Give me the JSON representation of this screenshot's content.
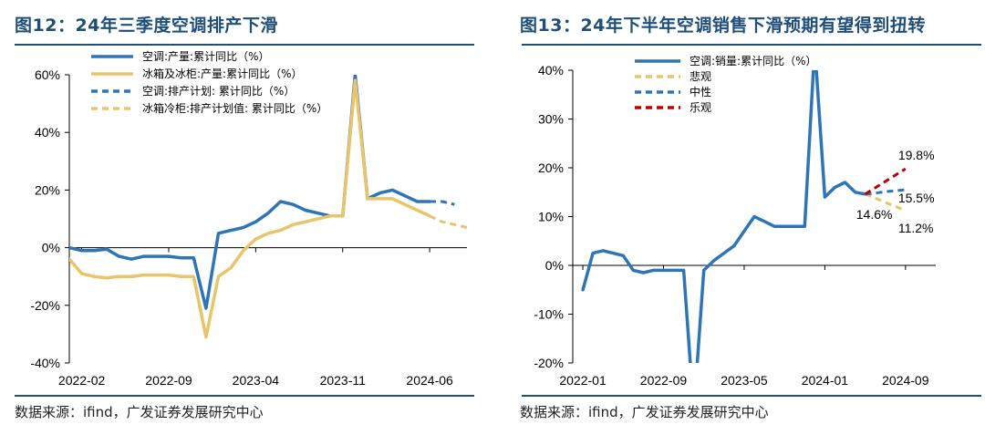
{
  "panels": [
    {
      "title": "图12：24年三季度空调排产下滑",
      "source": "数据来源：ifind，广发证券发展研究中心"
    },
    {
      "title": "图13：24年下半年空调销售下滑预期有望得到扭转",
      "source": "数据来源：ifind，广发证券发展研究中心"
    }
  ],
  "colors": {
    "title": "#1f4e79",
    "blue": "#2e75b6",
    "gold": "#e8c56a",
    "red": "#c00000"
  },
  "chart_data": [
    {
      "type": "line",
      "ylim": [
        -40,
        60
      ],
      "yticks": [
        -40,
        -20,
        0,
        20,
        40,
        60
      ],
      "ytick_labels": [
        "-40%",
        "-20%",
        "0%",
        "20%",
        "40%",
        "60%"
      ],
      "xlim": [
        "2022-01",
        "2024-09"
      ],
      "xticks": [
        "2022-02",
        "2022-09",
        "2023-04",
        "2023-11",
        "2024-06"
      ],
      "legend_position": "top-left",
      "series": [
        {
          "name": "空调:产量:累计同比（%）",
          "style": "solid",
          "color": "#2e75b6",
          "points": [
            [
              "2022-01",
              0
            ],
            [
              "2022-02",
              -1
            ],
            [
              "2022-03",
              -1
            ],
            [
              "2022-04",
              -0.5
            ],
            [
              "2022-05",
              -3
            ],
            [
              "2022-06",
              -4
            ],
            [
              "2022-07",
              -3
            ],
            [
              "2022-08",
              -3
            ],
            [
              "2022-09",
              -3
            ],
            [
              "2022-10",
              -3.5
            ],
            [
              "2022-11",
              -3.5
            ],
            [
              "2022-12",
              -21
            ],
            [
              "2023-01",
              5
            ],
            [
              "2023-02",
              6
            ],
            [
              "2023-03",
              7
            ],
            [
              "2023-04",
              9
            ],
            [
              "2023-05",
              12
            ],
            [
              "2023-06",
              16
            ],
            [
              "2023-07",
              15
            ],
            [
              "2023-08",
              13
            ],
            [
              "2023-09",
              12
            ],
            [
              "2023-10",
              11
            ],
            [
              "2023-11",
              11
            ],
            [
              "2023-12",
              60
            ],
            [
              "2024-01",
              17
            ],
            [
              "2024-02",
              19
            ],
            [
              "2024-03",
              20
            ],
            [
              "2024-04",
              18
            ],
            [
              "2024-05",
              16
            ],
            [
              "2024-06",
              16
            ]
          ]
        },
        {
          "name": "冰箱及冰柜:产量:累计同比（%）",
          "style": "solid",
          "color": "#e8c56a",
          "points": [
            [
              "2022-01",
              -4
            ],
            [
              "2022-02",
              -9
            ],
            [
              "2022-03",
              -10
            ],
            [
              "2022-04",
              -10.5
            ],
            [
              "2022-05",
              -10
            ],
            [
              "2022-06",
              -10
            ],
            [
              "2022-07",
              -9.5
            ],
            [
              "2022-08",
              -9.5
            ],
            [
              "2022-09",
              -9.5
            ],
            [
              "2022-10",
              -10
            ],
            [
              "2022-11",
              -10
            ],
            [
              "2022-12",
              -31
            ],
            [
              "2023-01",
              -10
            ],
            [
              "2023-02",
              -7
            ],
            [
              "2023-03",
              -1
            ],
            [
              "2023-04",
              3
            ],
            [
              "2023-05",
              5
            ],
            [
              "2023-06",
              6
            ],
            [
              "2023-07",
              8
            ],
            [
              "2023-08",
              9
            ],
            [
              "2023-09",
              10
            ],
            [
              "2023-10",
              11
            ],
            [
              "2023-11",
              11
            ],
            [
              "2023-12",
              58
            ],
            [
              "2024-01",
              17
            ],
            [
              "2024-02",
              17
            ],
            [
              "2024-03",
              17
            ],
            [
              "2024-04",
              15
            ],
            [
              "2024-05",
              13
            ],
            [
              "2024-06",
              11
            ]
          ]
        },
        {
          "name": "空调:排产计划: 累计同比（%）",
          "style": "dashed",
          "color": "#2e75b6",
          "points": [
            [
              "2024-06",
              16
            ],
            [
              "2024-07",
              16
            ],
            [
              "2024-08",
              15
            ]
          ]
        },
        {
          "name": "冰箱冷柜:排产计划值: 累计同比（%）",
          "style": "dashed",
          "color": "#e8c56a",
          "points": [
            [
              "2024-06",
              11
            ],
            [
              "2024-07",
              9
            ],
            [
              "2024-08",
              8
            ],
            [
              "2024-09",
              7
            ]
          ]
        }
      ]
    },
    {
      "type": "line",
      "ylim": [
        -20,
        40
      ],
      "yticks": [
        -20,
        -10,
        0,
        10,
        20,
        30,
        40
      ],
      "ytick_labels": [
        "-20%",
        "-10%",
        "0%",
        "10%",
        "20%",
        "30%",
        "40%"
      ],
      "xlim": [
        "2021-12",
        "2024-12"
      ],
      "xticks": [
        "2022-01",
        "2022-09",
        "2023-05",
        "2024-01",
        "2024-09"
      ],
      "legend_position": "top-left",
      "series": [
        {
          "name": "空调:销量:累计同比（%）",
          "style": "solid",
          "color": "#2e75b6",
          "points": [
            [
              "2022-01",
              -5
            ],
            [
              "2022-02",
              2.5
            ],
            [
              "2022-03",
              3
            ],
            [
              "2022-04",
              2.5
            ],
            [
              "2022-05",
              2
            ],
            [
              "2022-06",
              -1
            ],
            [
              "2022-07",
              -1.5
            ],
            [
              "2022-08",
              -1
            ],
            [
              "2022-09",
              -1
            ],
            [
              "2022-10",
              -1
            ],
            [
              "2022-11",
              -1
            ],
            [
              "2022-12",
              -30
            ],
            [
              "2023-01",
              -1
            ],
            [
              "2023-02",
              1
            ],
            [
              "2023-03",
              2.5
            ],
            [
              "2023-04",
              4
            ],
            [
              "2023-05",
              7
            ],
            [
              "2023-06",
              10
            ],
            [
              "2023-07",
              9
            ],
            [
              "2023-08",
              8
            ],
            [
              "2023-09",
              8
            ],
            [
              "2023-10",
              8
            ],
            [
              "2023-11",
              8
            ],
            [
              "2023-12",
              45
            ],
            [
              "2024-01",
              14
            ],
            [
              "2024-02",
              16
            ],
            [
              "2024-03",
              17
            ],
            [
              "2024-04",
              15
            ],
            [
              "2024-05",
              14.6
            ]
          ]
        },
        {
          "name": "悲观",
          "style": "dashed",
          "color": "#e8c56a",
          "points": [
            [
              "2024-05",
              14.6
            ],
            [
              "2024-06",
              13.8
            ],
            [
              "2024-07",
              12.9
            ],
            [
              "2024-08",
              12.1
            ],
            [
              "2024-09",
              11.2
            ]
          ]
        },
        {
          "name": "中性",
          "style": "dashed",
          "color": "#2e75b6",
          "points": [
            [
              "2024-05",
              14.6
            ],
            [
              "2024-06",
              14.8
            ],
            [
              "2024-07",
              15.1
            ],
            [
              "2024-08",
              15.3
            ],
            [
              "2024-09",
              15.5
            ]
          ]
        },
        {
          "name": "乐观",
          "style": "dashed",
          "color": "#c00000",
          "points": [
            [
              "2024-05",
              14.6
            ],
            [
              "2024-06",
              15.9
            ],
            [
              "2024-07",
              17.2
            ],
            [
              "2024-08",
              18.5
            ],
            [
              "2024-09",
              19.8
            ]
          ]
        }
      ],
      "data_labels": [
        {
          "text": "19.8%",
          "x": "2024-09",
          "y": 19.8
        },
        {
          "text": "15.5%",
          "x": "2024-09",
          "y": 15.5
        },
        {
          "text": "14.6%",
          "x": "2024-05",
          "y": 14.6
        },
        {
          "text": "11.2%",
          "x": "2024-09",
          "y": 11.2
        }
      ]
    }
  ]
}
